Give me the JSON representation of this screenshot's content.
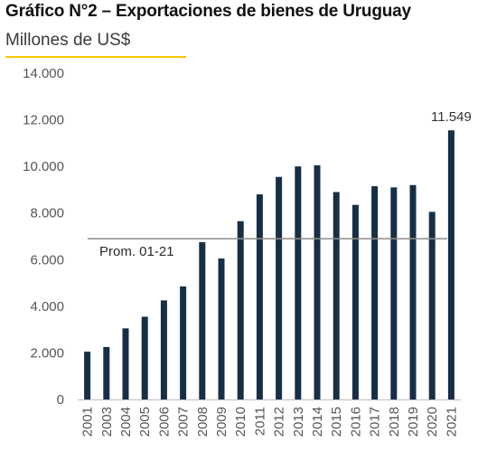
{
  "header": {
    "title": "Gráfico N°2 – Exportaciones de bienes de Uruguay",
    "subtitle": "Millones de US$"
  },
  "colors": {
    "bar": "#172f45",
    "accent_line": "#f2c500",
    "average_line": "#8c8c8c",
    "axis_text": "#555555",
    "axis_line": "#bdbdbd"
  },
  "chart_data": {
    "type": "bar",
    "title": "Gráfico N°2 – Exportaciones de bienes de Uruguay",
    "ylabel": "Millones de US$",
    "xlabel": "",
    "categories": [
      "2001",
      "2003",
      "2004",
      "2005",
      "2006",
      "2007",
      "2008",
      "2009",
      "2010",
      "2011",
      "2012",
      "2013",
      "2014",
      "2015",
      "2016",
      "2017",
      "2018",
      "2019",
      "2020",
      "2021"
    ],
    "values": [
      2050,
      2250,
      3050,
      3550,
      4250,
      4850,
      6750,
      6050,
      7650,
      8800,
      9550,
      10000,
      10050,
      8900,
      8350,
      9150,
      9100,
      9200,
      8050,
      11549
    ],
    "ylim": [
      0,
      14000
    ],
    "yticks": [
      0,
      2000,
      4000,
      6000,
      8000,
      10000,
      12000,
      14000
    ],
    "ytick_labels": [
      "0",
      "2.000",
      "4.000",
      "6.000",
      "8.000",
      "10.000",
      "12.000",
      "14.000"
    ],
    "data_labels": [
      {
        "category": "2021",
        "text": "11.549"
      }
    ],
    "reference_line": {
      "label": "Prom. 01-21",
      "value": 6900
    },
    "grid": false,
    "legend": "none"
  }
}
